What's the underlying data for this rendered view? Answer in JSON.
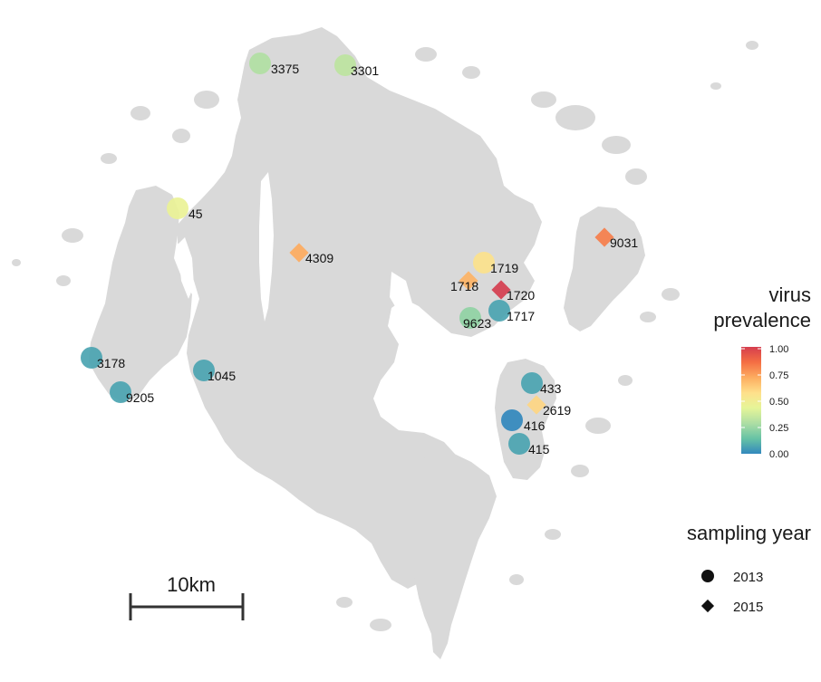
{
  "map": {
    "land_color": "#d9d9d9",
    "scale_bar_label": "10km",
    "color_legend": {
      "title_line1": "virus",
      "title_line2": "prevalence",
      "ticks": [
        "1.00",
        "0.75",
        "0.50",
        "0.25",
        "0.00"
      ],
      "colors": [
        "#d53e4f",
        "#f46d43",
        "#fdae61",
        "#fee08b",
        "#e6f598",
        "#abdda4",
        "#66c2a5",
        "#3288bd"
      ]
    },
    "shape_legend": {
      "title": "sampling year",
      "entries": [
        {
          "label": "2013",
          "shape": "circle"
        },
        {
          "label": "2015",
          "shape": "diamond"
        }
      ]
    },
    "sites": [
      {
        "id": "3375",
        "shape": "circle",
        "prevalence": 0.3
      },
      {
        "id": "3301",
        "shape": "circle",
        "prevalence": 0.33
      },
      {
        "id": "45",
        "shape": "circle",
        "prevalence": 0.45
      },
      {
        "id": "4309",
        "shape": "diamond",
        "prevalence": 0.72
      },
      {
        "id": "9031",
        "shape": "diamond",
        "prevalence": 0.82
      },
      {
        "id": "1719",
        "shape": "circle",
        "prevalence": 0.56
      },
      {
        "id": "1718",
        "shape": "diamond",
        "prevalence": 0.7
      },
      {
        "id": "1720",
        "shape": "diamond",
        "prevalence": 1.0
      },
      {
        "id": "1717",
        "shape": "circle",
        "prevalence": 0.07
      },
      {
        "id": "9623",
        "shape": "circle",
        "prevalence": 0.23
      },
      {
        "id": "3178",
        "shape": "circle",
        "prevalence": 0.07
      },
      {
        "id": "9205",
        "shape": "circle",
        "prevalence": 0.07
      },
      {
        "id": "1045",
        "shape": "circle",
        "prevalence": 0.07
      },
      {
        "id": "433",
        "shape": "circle",
        "prevalence": 0.07
      },
      {
        "id": "2619",
        "shape": "diamond",
        "prevalence": 0.6
      },
      {
        "id": "416",
        "shape": "circle",
        "prevalence": 0.0
      },
      {
        "id": "415",
        "shape": "circle",
        "prevalence": 0.07
      }
    ]
  }
}
